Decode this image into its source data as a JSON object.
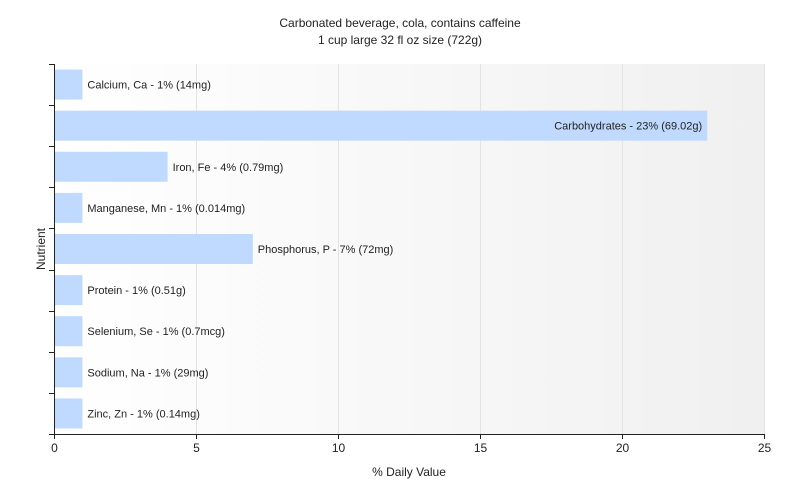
{
  "chart_data": {
    "type": "bar",
    "orientation": "horizontal",
    "title": "Carbonated beverage, cola, contains caffeine",
    "subtitle": "1 cup large 32 fl oz size (722g)",
    "xlabel": "% Daily Value",
    "ylabel": "Nutrient",
    "xlim": [
      0,
      25
    ],
    "xticks": [
      "0",
      "5",
      "10",
      "15",
      "20",
      "25"
    ],
    "grid": true,
    "bar_color": "#bfd9ff",
    "categories": [
      "Calcium, Ca",
      "Carbohydrates",
      "Iron, Fe",
      "Manganese, Mn",
      "Phosphorus, P",
      "Protein",
      "Selenium, Se",
      "Sodium, Na",
      "Zinc, Zn"
    ],
    "values": [
      1,
      23,
      4,
      1,
      7,
      1,
      1,
      1,
      1
    ],
    "labels": [
      "Calcium, Ca - 1% (14mg)",
      "Carbohydrates - 23% (69.02g)",
      "Iron, Fe - 4% (0.79mg)",
      "Manganese, Mn - 1% (0.014mg)",
      "Phosphorus, P - 7% (72mg)",
      "Protein - 1% (0.51g)",
      "Selenium, Se - 1% (0.7mcg)",
      "Sodium, Na - 1% (29mg)",
      "Zinc, Zn - 1% (0.14mg)"
    ]
  }
}
